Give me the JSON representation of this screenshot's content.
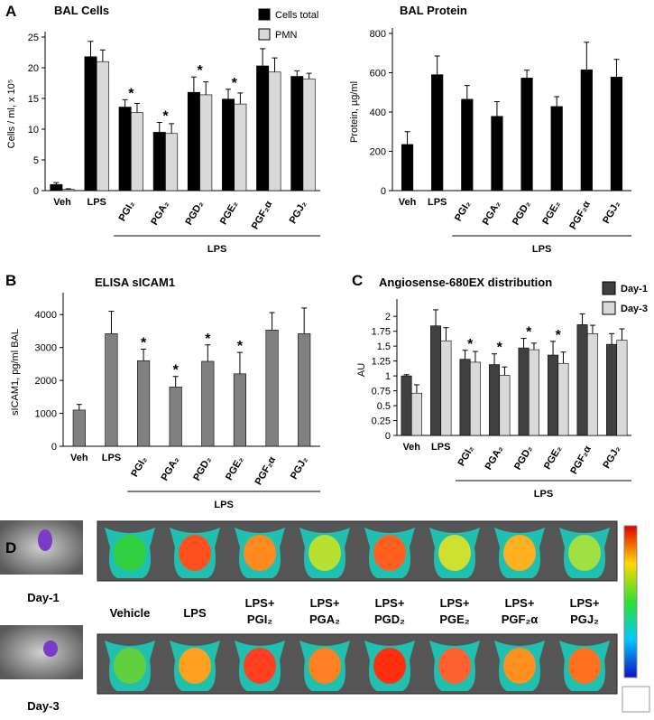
{
  "panel_labels": [
    "A",
    "B",
    "C",
    "D"
  ],
  "chart_data": [
    {
      "type": "bar",
      "title": "BAL Cells",
      "ylabel": "Cells / ml, x 10⁵",
      "categories": [
        "Veh",
        "LPS",
        "PGI₂",
        "PGA₂",
        "PGD₂",
        "PGE₂",
        "PGF₂α",
        "PGJ₂"
      ],
      "series": [
        {
          "name": "Cells total",
          "color": "#000000",
          "values": [
            1.0,
            21.8,
            13.6,
            9.5,
            16.0,
            14.9,
            20.3,
            18.6
          ],
          "error": [
            0.3,
            2.5,
            1.2,
            1.6,
            2.5,
            1.6,
            2.8,
            0.9
          ]
        },
        {
          "name": "PMN",
          "color": "#d9d9d9",
          "values": [
            0.2,
            21.0,
            12.7,
            9.3,
            15.6,
            14.1,
            19.3,
            18.2
          ],
          "error": [
            0.1,
            1.9,
            1.5,
            1.6,
            2.1,
            1.8,
            2.3,
            0.9
          ]
        }
      ],
      "ylim": [
        0,
        25
      ],
      "yticks": [
        0,
        5,
        10,
        15,
        20,
        25
      ],
      "group_label": "LPS",
      "annotations": [
        {
          "text": "*",
          "category": "PGI₂"
        },
        {
          "text": "*",
          "category": "PGA₂"
        },
        {
          "text": "*",
          "category": "PGD₂"
        },
        {
          "text": "*",
          "category": "PGE₂"
        }
      ]
    },
    {
      "type": "bar",
      "title": "BAL Protein",
      "ylabel": "Protein, µg/ml",
      "categories": [
        "Veh",
        "LPS",
        "PGI₂",
        "PGA₂",
        "PGD₂",
        "PGE₂",
        "PGF₂α",
        "PGJ₂"
      ],
      "series": [
        {
          "color": "#000000",
          "values": [
            235,
            590,
            465,
            378,
            573,
            428,
            615,
            578
          ],
          "error": [
            65,
            95,
            70,
            75,
            40,
            50,
            140,
            90
          ]
        }
      ],
      "ylim": [
        0,
        800
      ],
      "yticks": [
        0,
        200,
        400,
        600,
        800
      ],
      "group_label": "LPS"
    },
    {
      "type": "bar",
      "title": "ELISA sICAM1",
      "ylabel": "sICAM1, pg/ml BAL",
      "categories": [
        "Veh",
        "LPS",
        "PGI₂",
        "PGA₂",
        "PGD₂",
        "PGE₂",
        "PGF₂α",
        "PGJ₂"
      ],
      "series": [
        {
          "color": "#808080",
          "values": [
            1100,
            3420,
            2600,
            1800,
            2580,
            2200,
            3530,
            3420
          ],
          "error": [
            170,
            680,
            350,
            320,
            500,
            650,
            530,
            780
          ]
        }
      ],
      "ylim": [
        0,
        4500
      ],
      "yticks": [
        0,
        1000,
        2000,
        3000,
        4000
      ],
      "group_label": "LPS",
      "annotations": [
        {
          "text": "*",
          "category": "PGI₂"
        },
        {
          "text": "*",
          "category": "PGA₂"
        },
        {
          "text": "*",
          "category": "PGD₂"
        },
        {
          "text": "*",
          "category": "PGE₂"
        }
      ]
    },
    {
      "type": "bar",
      "title": "Angiosense-680EX distribution",
      "ylabel": "AU",
      "categories": [
        "Veh",
        "LPS",
        "PGI₂",
        "PGA₂",
        "PGD₂",
        "PGE₂",
        "PGF₂α",
        "PGJ₂"
      ],
      "series": [
        {
          "name": "Day-1",
          "color": "#404040",
          "values": [
            1.0,
            1.84,
            1.28,
            1.19,
            1.47,
            1.35,
            1.86,
            1.53
          ],
          "error": [
            0.02,
            0.27,
            0.15,
            0.18,
            0.16,
            0.23,
            0.18,
            0.18
          ]
        },
        {
          "name": "Day-3",
          "color": "#d9d9d9",
          "values": [
            0.71,
            1.59,
            1.23,
            1.01,
            1.44,
            1.21,
            1.71,
            1.6
          ],
          "error": [
            0.14,
            0.22,
            0.18,
            0.14,
            0.11,
            0.19,
            0.14,
            0.19
          ]
        }
      ],
      "ylim": [
        0,
        2.2
      ],
      "yticks": [
        0,
        0.25,
        0.5,
        0.75,
        1,
        1.25,
        1.5,
        1.75,
        2
      ],
      "group_label": "LPS",
      "annotations": [
        {
          "text": "*",
          "category": "PGI₂"
        },
        {
          "text": "*",
          "category": "PGA₂"
        },
        {
          "text": "*",
          "category": "PGD₂"
        },
        {
          "text": "*",
          "category": "PGE₂"
        }
      ]
    }
  ],
  "panel_d": {
    "rows": [
      "Day-1",
      "Day-3"
    ],
    "columns": [
      [
        "Vehicle"
      ],
      [
        "LPS"
      ],
      [
        "LPS+",
        "PGI₂"
      ],
      [
        "LPS+",
        "PGA₂"
      ],
      [
        "LPS+",
        "PGD₂"
      ],
      [
        "LPS+",
        "PGE₂"
      ],
      [
        "LPS+",
        "PGF₂α"
      ],
      [
        "LPS+",
        "PGJ₂"
      ]
    ]
  }
}
